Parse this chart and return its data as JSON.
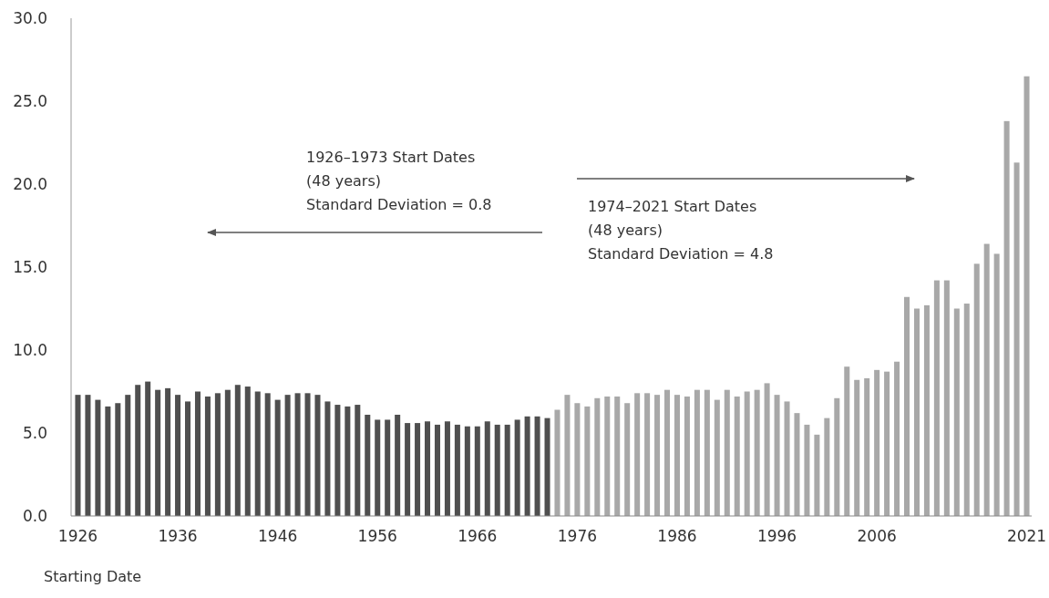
{
  "chart_data": {
    "type": "bar",
    "xlabel": "Starting Date",
    "categories": [
      "1926",
      null,
      null,
      null,
      null,
      null,
      null,
      null,
      null,
      null,
      "1936",
      null,
      null,
      null,
      null,
      null,
      null,
      null,
      null,
      null,
      "1946",
      null,
      null,
      null,
      null,
      null,
      null,
      null,
      null,
      null,
      "1956",
      null,
      null,
      null,
      null,
      null,
      null,
      null,
      null,
      null,
      "1966",
      null,
      null,
      null,
      null,
      null,
      null,
      null,
      null,
      null,
      "1976",
      null,
      null,
      null,
      null,
      null,
      null,
      null,
      null,
      null,
      "1986",
      null,
      null,
      null,
      null,
      null,
      null,
      null,
      null,
      null,
      "1996",
      null,
      null,
      null,
      null,
      null,
      null,
      null,
      null,
      null,
      "2006",
      null,
      null,
      null,
      null,
      null,
      null,
      null,
      null,
      null,
      null,
      null,
      null,
      null,
      null,
      "2021"
    ],
    "series": [
      {
        "color": "#4f4f4f",
        "values": [
          7.3,
          7.3,
          7.0,
          6.6,
          6.8,
          7.3,
          7.9,
          8.1,
          7.6,
          7.7,
          7.3,
          6.9,
          7.5,
          7.2,
          7.4,
          7.6,
          7.9,
          7.8,
          7.5,
          7.4,
          7.0,
          7.3,
          7.4,
          7.4,
          7.3,
          6.9,
          6.7,
          6.6,
          6.7,
          6.1,
          5.8,
          5.8,
          6.1,
          5.6,
          5.6,
          5.7,
          5.5,
          5.7,
          5.5,
          5.4,
          5.4,
          5.7,
          5.5,
          5.5,
          5.8,
          6.0,
          6.0,
          5.9,
          null,
          null,
          null,
          null,
          null,
          null,
          null,
          null,
          null,
          null,
          null,
          null,
          null,
          null,
          null,
          null,
          null,
          null,
          null,
          null,
          null,
          null,
          null,
          null,
          null,
          null,
          null,
          null,
          null,
          null,
          null,
          null,
          null,
          null,
          null,
          null,
          null,
          null,
          null,
          null,
          null,
          null,
          null,
          null,
          null,
          null,
          null,
          null
        ]
      },
      {
        "color": "#a8a8a8",
        "values": [
          null,
          null,
          null,
          null,
          null,
          null,
          null,
          null,
          null,
          null,
          null,
          null,
          null,
          null,
          null,
          null,
          null,
          null,
          null,
          null,
          null,
          null,
          null,
          null,
          null,
          null,
          null,
          null,
          null,
          null,
          null,
          null,
          null,
          null,
          null,
          null,
          null,
          null,
          null,
          null,
          null,
          null,
          null,
          null,
          null,
          null,
          null,
          null,
          6.4,
          7.3,
          6.8,
          6.6,
          7.1,
          7.2,
          7.2,
          6.8,
          7.4,
          7.4,
          7.3,
          7.6,
          7.3,
          7.2,
          7.6,
          7.6,
          7.0,
          7.6,
          7.2,
          7.5,
          7.6,
          8.0,
          7.3,
          6.9,
          6.2,
          5.5,
          4.9,
          5.9,
          7.1,
          9.0,
          8.2,
          8.3,
          8.8,
          8.7,
          9.3,
          13.2,
          12.5,
          12.7,
          14.2,
          14.2,
          12.5,
          12.8,
          15.2,
          16.4,
          15.8,
          23.8,
          21.3,
          26.5
        ]
      }
    ],
    "ylim": [
      0,
      30
    ],
    "yticks": [
      {
        "value": 0,
        "label": "0.0"
      },
      {
        "value": 5,
        "label": "5.0"
      },
      {
        "value": 10,
        "label": "10.0"
      },
      {
        "value": 15,
        "label": "15.0"
      },
      {
        "value": 20,
        "label": "20.0"
      },
      {
        "value": 25,
        "label": "25.0"
      },
      {
        "value": 30,
        "label": "30.0"
      }
    ],
    "grid": false,
    "annotations": [
      "1926–1973 Start Dates\n(48 years)\nStandard Deviation = 0.8",
      "1974–2021 Start Dates\n(48 years)\nStandard Deviation = 4.8"
    ]
  }
}
